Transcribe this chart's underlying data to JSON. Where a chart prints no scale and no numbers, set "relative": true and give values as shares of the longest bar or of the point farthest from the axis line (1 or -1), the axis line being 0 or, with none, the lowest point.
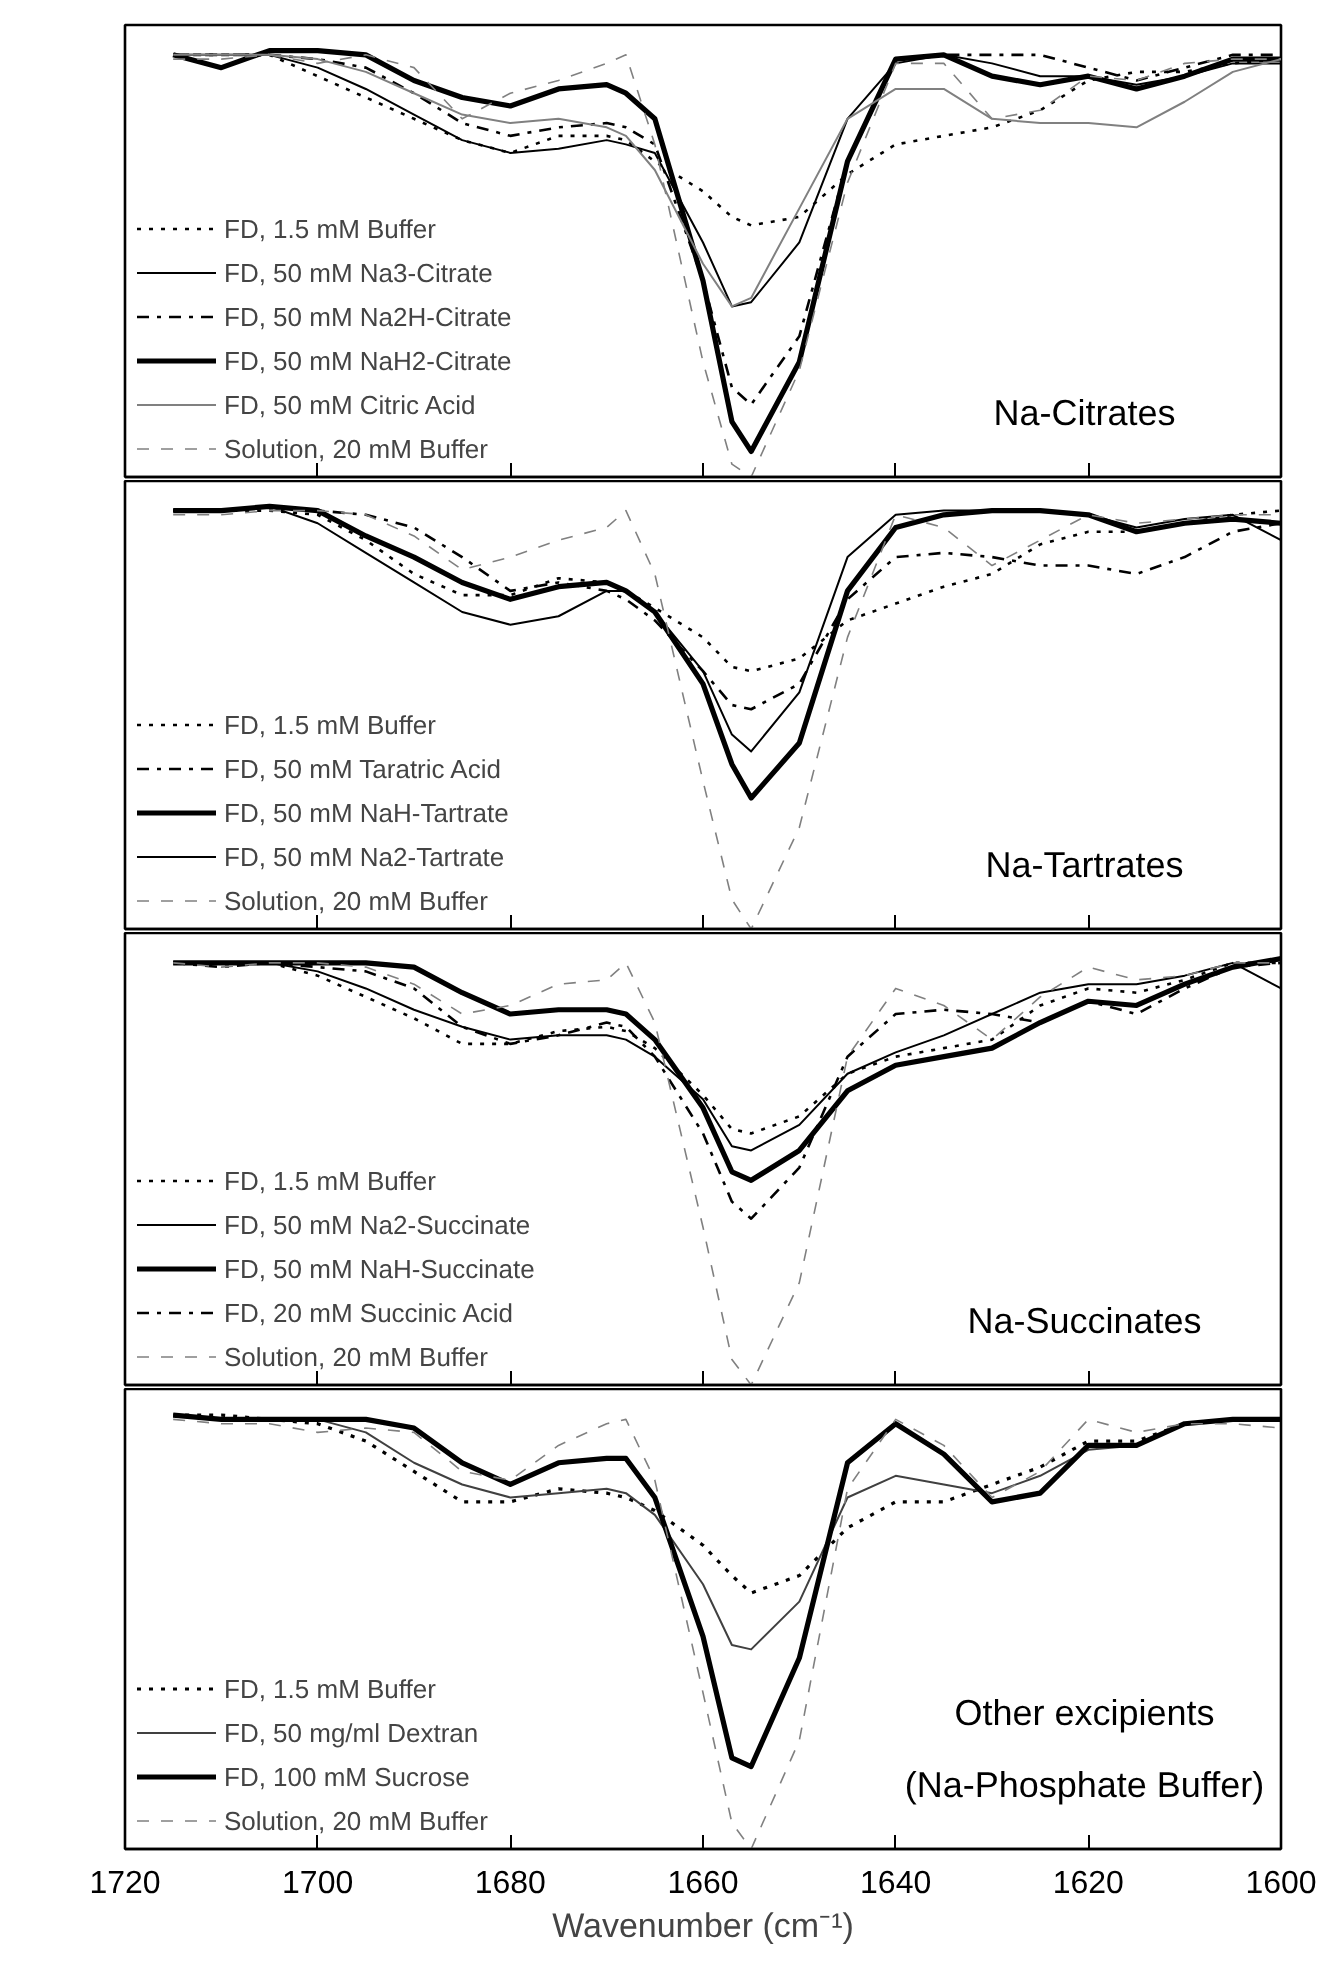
{
  "chart_data": [
    {
      "type": "line",
      "title": "Na-Citrates",
      "relative": true,
      "xlim": [
        1720,
        1600
      ],
      "xticks": [
        1720,
        1700,
        1680,
        1660,
        1640,
        1620,
        1600
      ],
      "tick_labels": false,
      "legend": "bottom left",
      "grid": false,
      "x": [
        1715,
        1710,
        1705,
        1700,
        1695,
        1690,
        1685,
        1680,
        1675,
        1670,
        1668,
        1665,
        1660,
        1657,
        1655,
        1650,
        1645,
        1640,
        1635,
        1630,
        1625,
        1620,
        1615,
        1610,
        1605,
        1600
      ],
      "series": [
        {
          "name": "FD, 1.5 mM Buffer",
          "color": "#000000",
          "line_style": "dotted",
          "values": [
            0.99,
            0.99,
            0.99,
            0.94,
            0.89,
            0.84,
            0.79,
            0.76,
            0.8,
            0.8,
            0.79,
            0.74,
            0.67,
            0.61,
            0.59,
            0.61,
            0.71,
            0.78,
            0.8,
            0.82,
            0.86,
            0.93,
            0.95,
            0.95,
            0.97,
            0.98
          ]
        },
        {
          "name": "FD, 50 mM Na3-Citrate",
          "color": "#000000",
          "line_style": "solid",
          "values": [
            0.99,
            0.99,
            0.99,
            0.96,
            0.91,
            0.85,
            0.79,
            0.76,
            0.77,
            0.79,
            0.78,
            0.76,
            0.55,
            0.4,
            0.41,
            0.55,
            0.84,
            0.97,
            0.99,
            0.97,
            0.94,
            0.94,
            0.92,
            0.94,
            0.97,
            0.97
          ]
        },
        {
          "name": "FD, 50 mM Na2H-Citrate",
          "color": "#000000",
          "line_style": "dashdot",
          "values": [
            0.99,
            0.99,
            0.99,
            0.98,
            0.96,
            0.9,
            0.83,
            0.8,
            0.82,
            0.83,
            0.82,
            0.78,
            0.46,
            0.21,
            0.17,
            0.33,
            0.74,
            0.98,
            0.99,
            0.99,
            0.99,
            0.96,
            0.93,
            0.96,
            0.99,
            0.99
          ]
        },
        {
          "name": "FD, 50 mM NaH2-Citrate",
          "color": "#000000",
          "line_style": "solid",
          "values": [
            0.99,
            0.96,
            1.0,
            1.0,
            0.99,
            0.93,
            0.89,
            0.87,
            0.91,
            0.92,
            0.9,
            0.84,
            0.46,
            0.13,
            0.06,
            0.27,
            0.74,
            0.98,
            0.99,
            0.94,
            0.92,
            0.94,
            0.91,
            0.94,
            0.98,
            0.98
          ]
        },
        {
          "name": "FD, 50 mM Citric Acid",
          "color": "#808080",
          "line_style": "solid",
          "values": [
            0.99,
            0.99,
            0.99,
            0.98,
            0.95,
            0.9,
            0.85,
            0.83,
            0.84,
            0.82,
            0.8,
            0.72,
            0.5,
            0.4,
            0.42,
            0.63,
            0.84,
            0.91,
            0.91,
            0.84,
            0.83,
            0.83,
            0.82,
            0.88,
            0.95,
            0.98
          ]
        },
        {
          "name": "Solution, 20 mM Buffer",
          "color": "#808080",
          "line_style": "dashed",
          "values": [
            0.98,
            0.98,
            0.99,
            0.97,
            0.99,
            0.96,
            0.84,
            0.9,
            0.93,
            0.97,
            0.99,
            0.78,
            0.27,
            0.03,
            0.0,
            0.25,
            0.69,
            0.97,
            0.97,
            0.84,
            0.86,
            0.94,
            0.93,
            0.97,
            0.98,
            0.98
          ]
        }
      ]
    },
    {
      "type": "line",
      "title": "Na-Tartrates",
      "relative": true,
      "xlim": [
        1720,
        1600
      ],
      "xticks": [
        1720,
        1700,
        1680,
        1660,
        1640,
        1620,
        1600
      ],
      "tick_labels": false,
      "legend": "bottom left",
      "grid": false,
      "x": [
        1715,
        1710,
        1705,
        1700,
        1695,
        1690,
        1685,
        1680,
        1675,
        1670,
        1668,
        1665,
        1660,
        1657,
        1655,
        1650,
        1645,
        1640,
        1635,
        1630,
        1625,
        1620,
        1615,
        1610,
        1605,
        1600
      ],
      "series": [
        {
          "name": "FD, 1.5 mM Buffer",
          "color": "#000000",
          "line_style": "dotted",
          "values": [
            0.99,
            0.99,
            0.99,
            0.98,
            0.92,
            0.84,
            0.79,
            0.79,
            0.83,
            0.82,
            0.8,
            0.76,
            0.69,
            0.62,
            0.61,
            0.64,
            0.73,
            0.77,
            0.81,
            0.84,
            0.91,
            0.94,
            0.94,
            0.96,
            0.98,
            0.99
          ]
        },
        {
          "name": "FD, 50 mM Taratric Acid",
          "color": "#000000",
          "line_style": "dashdot",
          "values": [
            0.99,
            0.99,
            1.0,
            0.99,
            0.98,
            0.95,
            0.88,
            0.8,
            0.82,
            0.8,
            0.78,
            0.73,
            0.61,
            0.53,
            0.52,
            0.58,
            0.78,
            0.88,
            0.89,
            0.88,
            0.86,
            0.86,
            0.84,
            0.88,
            0.94,
            0.96
          ]
        },
        {
          "name": "FD, 50 mM NaH-Tartrate",
          "color": "#000000",
          "line_style": "solid",
          "values": [
            0.99,
            0.99,
            1.0,
            0.99,
            0.93,
            0.88,
            0.82,
            0.78,
            0.81,
            0.82,
            0.8,
            0.75,
            0.58,
            0.39,
            0.31,
            0.44,
            0.8,
            0.95,
            0.98,
            0.99,
            0.99,
            0.98,
            0.94,
            0.96,
            0.97,
            0.96
          ]
        },
        {
          "name": "FD, 50 mM Na2-Tartrate",
          "color": "#000000",
          "line_style": "solid",
          "values": [
            0.99,
            0.99,
            1.0,
            0.96,
            0.89,
            0.82,
            0.75,
            0.72,
            0.74,
            0.8,
            0.8,
            0.75,
            0.61,
            0.46,
            0.42,
            0.56,
            0.88,
            0.98,
            0.99,
            0.99,
            0.99,
            0.98,
            0.95,
            0.97,
            0.98,
            0.92
          ]
        },
        {
          "name": "Solution, 20 mM Buffer",
          "color": "#808080",
          "line_style": "dashed",
          "values": [
            0.98,
            0.98,
            0.99,
            0.99,
            0.98,
            0.93,
            0.85,
            0.88,
            0.92,
            0.95,
            0.99,
            0.84,
            0.35,
            0.07,
            0.0,
            0.24,
            0.69,
            0.98,
            0.95,
            0.86,
            0.92,
            0.98,
            0.96,
            0.97,
            0.98,
            0.98
          ]
        }
      ]
    },
    {
      "type": "line",
      "title": "Na-Succinates",
      "relative": true,
      "xlim": [
        1720,
        1600
      ],
      "xticks": [
        1720,
        1700,
        1680,
        1660,
        1640,
        1620,
        1600
      ],
      "tick_labels": false,
      "legend": "bottom left",
      "grid": false,
      "x": [
        1715,
        1710,
        1705,
        1700,
        1695,
        1690,
        1685,
        1680,
        1675,
        1670,
        1668,
        1665,
        1660,
        1657,
        1655,
        1650,
        1645,
        1640,
        1635,
        1630,
        1625,
        1620,
        1615,
        1610,
        1605,
        1600
      ],
      "series": [
        {
          "name": "FD, 1.5 mM Buffer",
          "color": "#000000",
          "line_style": "dotted",
          "values": [
            0.99,
            0.99,
            0.99,
            0.96,
            0.91,
            0.86,
            0.8,
            0.8,
            0.83,
            0.84,
            0.83,
            0.79,
            0.68,
            0.6,
            0.59,
            0.63,
            0.73,
            0.77,
            0.79,
            0.81,
            0.89,
            0.93,
            0.92,
            0.95,
            0.99,
            0.99
          ]
        },
        {
          "name": "FD, 50 mM Na2-Succinate",
          "color": "#000000",
          "line_style": "solid",
          "values": [
            0.99,
            0.99,
            0.99,
            0.97,
            0.93,
            0.88,
            0.84,
            0.81,
            0.82,
            0.82,
            0.81,
            0.77,
            0.67,
            0.56,
            0.55,
            0.61,
            0.73,
            0.78,
            0.82,
            0.87,
            0.92,
            0.94,
            0.94,
            0.96,
            0.99,
            0.93
          ]
        },
        {
          "name": "FD, 50 mM NaH-Succinate",
          "color": "#000000",
          "line_style": "solid",
          "values": [
            0.99,
            0.99,
            0.99,
            0.99,
            0.99,
            0.98,
            0.92,
            0.87,
            0.88,
            0.88,
            0.87,
            0.81,
            0.65,
            0.5,
            0.48,
            0.55,
            0.69,
            0.75,
            0.77,
            0.79,
            0.85,
            0.9,
            0.89,
            0.94,
            0.98,
            1.0
          ]
        },
        {
          "name": "FD, 20 mM Succinic Acid",
          "color": "#000000",
          "line_style": "dashdot",
          "values": [
            0.99,
            0.98,
            0.99,
            0.98,
            0.97,
            0.93,
            0.84,
            0.8,
            0.82,
            0.85,
            0.84,
            0.77,
            0.59,
            0.43,
            0.39,
            0.51,
            0.77,
            0.87,
            0.88,
            0.87,
            0.85,
            0.9,
            0.87,
            0.93,
            0.98,
            0.99
          ]
        },
        {
          "name": "Solution, 20 mM Buffer",
          "color": "#808080",
          "line_style": "dashed",
          "values": [
            0.99,
            0.98,
            0.99,
            0.99,
            0.98,
            0.94,
            0.87,
            0.89,
            0.94,
            0.95,
            0.99,
            0.85,
            0.37,
            0.06,
            0.0,
            0.24,
            0.77,
            0.93,
            0.89,
            0.81,
            0.91,
            0.98,
            0.95,
            0.96,
            0.99,
            0.99
          ]
        }
      ]
    },
    {
      "type": "line",
      "title": "Other excipients",
      "subtitle": "(Na-Phosphate Buffer)",
      "relative": true,
      "xlim": [
        1720,
        1600
      ],
      "xticks": [
        1720,
        1700,
        1680,
        1660,
        1640,
        1620,
        1600
      ],
      "tick_labels": "x",
      "xlabel": "Wavenumber (cm⁻¹)",
      "legend": "bottom left",
      "grid": false,
      "x": [
        1715,
        1710,
        1705,
        1700,
        1695,
        1690,
        1685,
        1680,
        1675,
        1670,
        1668,
        1665,
        1660,
        1657,
        1655,
        1650,
        1645,
        1640,
        1635,
        1630,
        1625,
        1620,
        1615,
        1610,
        1605,
        1600
      ],
      "series": [
        {
          "name": "FD, 1.5 mM Buffer",
          "color": "#000000",
          "line_style": "dotted",
          "values": [
            1.0,
            1.0,
            0.99,
            0.98,
            0.94,
            0.87,
            0.8,
            0.8,
            0.83,
            0.82,
            0.81,
            0.78,
            0.7,
            0.63,
            0.59,
            0.63,
            0.74,
            0.8,
            0.8,
            0.84,
            0.88,
            0.94,
            0.94,
            0.98,
            0.99,
            0.99
          ]
        },
        {
          "name": "FD, 50 mg/ml Dextran",
          "color": "#404040",
          "line_style": "solid",
          "values": [
            1.0,
            0.99,
            0.99,
            0.99,
            0.96,
            0.89,
            0.84,
            0.81,
            0.82,
            0.83,
            0.82,
            0.77,
            0.61,
            0.47,
            0.46,
            0.57,
            0.81,
            0.86,
            0.84,
            0.82,
            0.86,
            0.92,
            0.93,
            0.98,
            0.99,
            0.99
          ]
        },
        {
          "name": "FD, 100 mM Sucrose",
          "color": "#000000",
          "line_style": "solid",
          "values": [
            1.0,
            0.99,
            0.99,
            0.99,
            0.99,
            0.97,
            0.89,
            0.84,
            0.89,
            0.9,
            0.9,
            0.81,
            0.49,
            0.21,
            0.19,
            0.44,
            0.89,
            0.98,
            0.91,
            0.8,
            0.82,
            0.93,
            0.93,
            0.98,
            0.99,
            0.99
          ]
        },
        {
          "name": "Solution, 20 mM Buffer",
          "color": "#808080",
          "line_style": "dashed",
          "values": [
            0.99,
            0.98,
            0.98,
            0.96,
            0.97,
            0.96,
            0.87,
            0.85,
            0.93,
            0.98,
            0.99,
            0.85,
            0.36,
            0.06,
            0.0,
            0.25,
            0.83,
            0.99,
            0.93,
            0.81,
            0.87,
            0.99,
            0.96,
            0.98,
            0.98,
            0.97
          ]
        }
      ]
    }
  ]
}
